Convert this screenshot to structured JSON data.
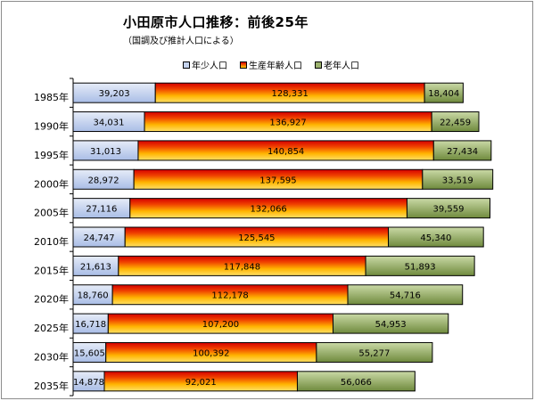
{
  "title": "小田原市人口推移：前後25年",
  "subtitle": "（国調及び推計人口による）",
  "colors": {
    "youth": "#c5d3ee",
    "working_top": "#e00000",
    "working_mid": "#ffcc00",
    "elderly": "#9db36f",
    "border": "#000000"
  },
  "chart_data": {
    "type": "bar",
    "orientation": "horizontal",
    "stacked": true,
    "categories": [
      "1985年",
      "1990年",
      "1995年",
      "2000年",
      "2005年",
      "2010年",
      "2015年",
      "2020年",
      "2025年",
      "2030年",
      "2035年"
    ],
    "series": [
      {
        "name": "年少人口",
        "values": [
          39203,
          34031,
          31013,
          28972,
          27116,
          24747,
          21613,
          18760,
          16718,
          15605,
          14878
        ]
      },
      {
        "name": "生産年齢人口",
        "values": [
          128331,
          136927,
          140854,
          137595,
          132066,
          125545,
          117848,
          112178,
          107200,
          100392,
          92021
        ]
      },
      {
        "name": "老年人口",
        "values": [
          18404,
          22459,
          27434,
          33519,
          39559,
          45340,
          51893,
          54716,
          54953,
          55277,
          56066
        ]
      }
    ],
    "data_labels": [
      [
        "39,203",
        "34,031",
        "31,013",
        "28,972",
        "27,116",
        "24,747",
        "21,613",
        "18,760",
        "16,718",
        "15,605",
        "14,878"
      ],
      [
        "128,331",
        "136,927",
        "140,854",
        "137,595",
        "132,066",
        "125,545",
        "117,848",
        "112,178",
        "107,200",
        "100,392",
        "92,021"
      ],
      [
        "18,404",
        "22,459",
        "27,434",
        "33,519",
        "39,559",
        "45,340",
        "51,893",
        "54,716",
        "54,953",
        "55,277",
        "56,066"
      ]
    ],
    "xlim": [
      0,
      210000
    ],
    "legend_position": "top",
    "grid": false
  }
}
